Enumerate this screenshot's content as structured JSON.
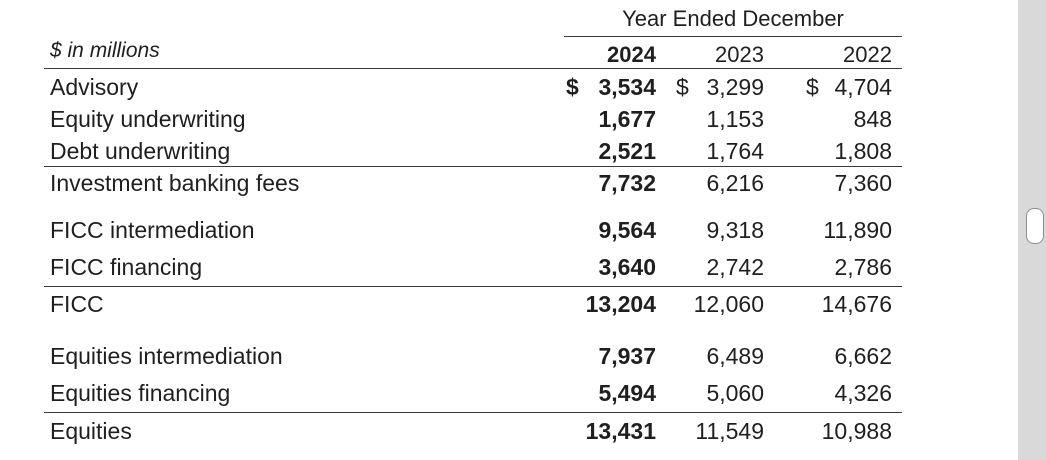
{
  "table": {
    "period_header": "Year Ended December",
    "units_label": "$ in millions",
    "years": [
      "2024",
      "2023",
      "2022"
    ],
    "rows": [
      {
        "label": "Advisory",
        "currency": "$",
        "values": [
          "3,534",
          "3,299",
          "4,704"
        ]
      },
      {
        "label": "Equity underwriting",
        "currency": "",
        "values": [
          "1,677",
          "1,153",
          "848"
        ]
      },
      {
        "label": "Debt underwriting",
        "currency": "",
        "values": [
          "2,521",
          "1,764",
          "1,808"
        ]
      },
      {
        "label": "Investment banking fees",
        "currency": "",
        "values": [
          "7,732",
          "6,216",
          "7,360"
        ]
      },
      {
        "label": "FICC intermediation",
        "currency": "",
        "values": [
          "9,564",
          "9,318",
          "11,890"
        ]
      },
      {
        "label": "FICC financing",
        "currency": "",
        "values": [
          "3,640",
          "2,742",
          "2,786"
        ]
      },
      {
        "label": "FICC",
        "currency": "",
        "values": [
          "13,204",
          "12,060",
          "14,676"
        ]
      },
      {
        "label": "Equities intermediation",
        "currency": "",
        "values": [
          "7,937",
          "6,489",
          "6,662"
        ]
      },
      {
        "label": "Equities financing",
        "currency": "",
        "values": [
          "5,494",
          "5,060",
          "4,326"
        ]
      },
      {
        "label": "Equities",
        "currency": "",
        "values": [
          "13,431",
          "11,549",
          "10,988"
        ]
      }
    ]
  }
}
